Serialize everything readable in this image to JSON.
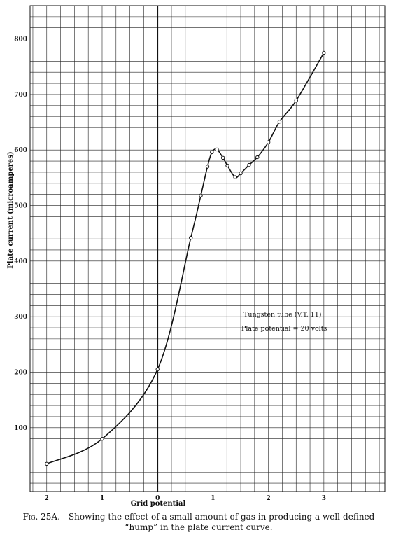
{
  "chart_data": {
    "type": "line",
    "xlabel": "Grid potential",
    "ylabel": "Plate current (microamperes)",
    "x_ticks": [
      {
        "value": -2,
        "label": "2"
      },
      {
        "value": -1,
        "label": "1"
      },
      {
        "value": 0,
        "label": "0"
      },
      {
        "value": 1,
        "label": "1"
      },
      {
        "value": 2,
        "label": "2"
      },
      {
        "value": 3,
        "label": "3"
      }
    ],
    "y_ticks": [
      100,
      200,
      300,
      400,
      500,
      600,
      700,
      800
    ],
    "xlim": [
      -2.3,
      4.1
    ],
    "ylim": [
      -15,
      860
    ],
    "grid": true,
    "annotations": [
      "Tungsten tube (V.T. 11)",
      "Plate potential = 20 volts"
    ],
    "series": [
      {
        "markers": true,
        "x": [
          -2.0,
          -1.0,
          0.0,
          0.6,
          0.78,
          0.9,
          0.98,
          1.07,
          1.18,
          1.26,
          1.4,
          1.5,
          1.65,
          1.8,
          2.0,
          2.2,
          2.5,
          3.0
        ],
        "y": [
          35,
          80,
          205,
          442,
          518,
          570,
          596,
          601,
          586,
          572,
          551,
          558,
          573,
          587,
          614,
          651,
          689,
          775
        ]
      }
    ]
  },
  "caption": {
    "lead": "Fig. 25A.",
    "text": "—Showing the effect of a small amount of gas in producing a well-defined “hump” in the plate current curve."
  }
}
